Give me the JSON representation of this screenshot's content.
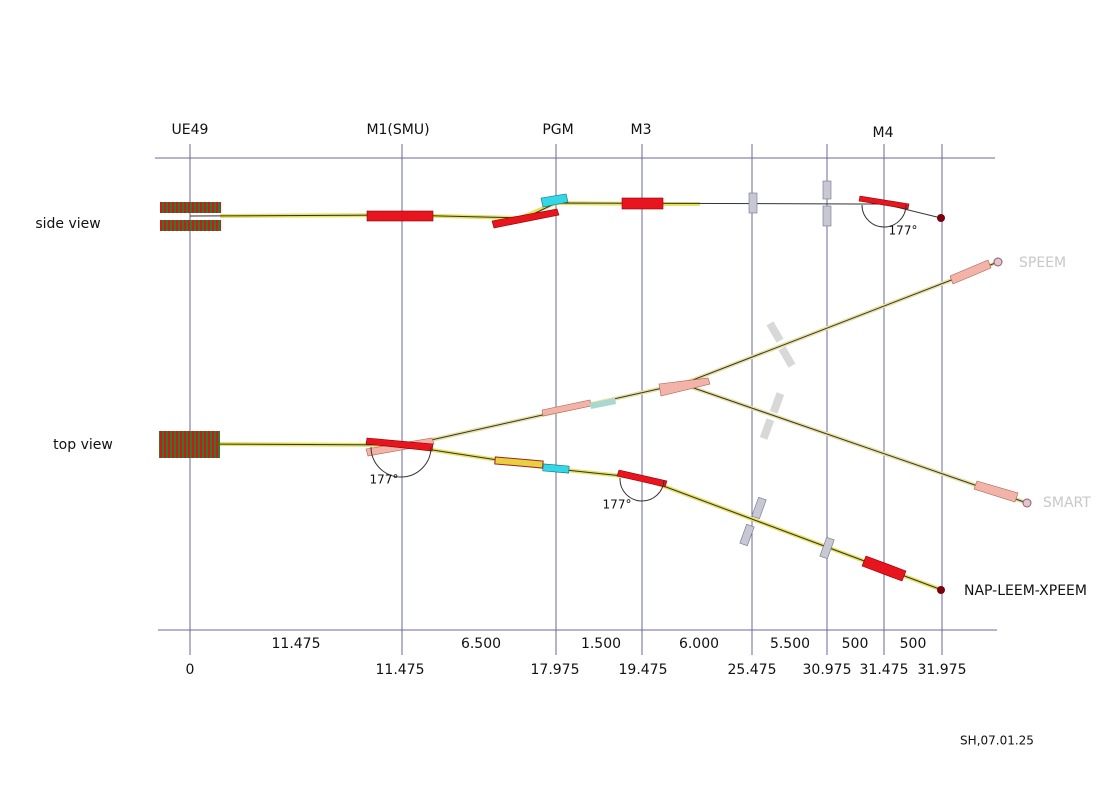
{
  "components": [
    "UE49",
    "M1(SMU)",
    "PGM",
    "M3",
    "M4"
  ],
  "views": [
    "side view",
    "top view"
  ],
  "angles": [
    "177°",
    "177°",
    "177°"
  ],
  "branches": [
    "SPEEM",
    "SMART",
    "NAP-LEEM-XPEEM"
  ],
  "distances": [
    "11.475",
    "6.500",
    "1.500",
    "6.000",
    "5.500",
    "500",
    "500"
  ],
  "positions": [
    "0",
    "11.475",
    "17.975",
    "19.475",
    "25.475",
    "30.975",
    "31.475",
    "31.975"
  ],
  "footer": "SH,07.01.25"
}
